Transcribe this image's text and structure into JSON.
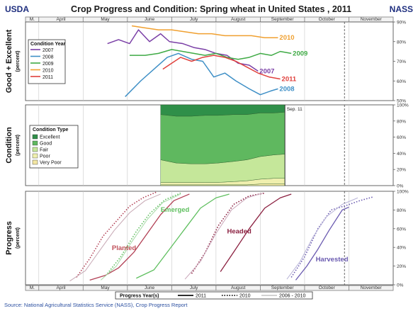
{
  "header": {
    "left": "USDA",
    "title": "Crop Progress and Condition: Spring wheat in United States , 2011",
    "right": "NASS"
  },
  "months_top": [
    "M.",
    "April",
    "May",
    "June",
    "July",
    "August",
    "September",
    "October",
    "November"
  ],
  "months_bottom": [
    "M.",
    "April",
    "May",
    "June",
    "July",
    "August",
    "September",
    "October",
    "November"
  ],
  "source": "Source: National Agricultural Statistics Service (NASS), Crop Progress Report",
  "colors": {
    "title": "#1f2f7f",
    "y2007": "#7a3fa6",
    "y2008": "#3e8fc6",
    "y2009": "#3faa45",
    "y2010": "#f0a030",
    "y2011": "#e0403c"
  },
  "chart_data": [
    {
      "type": "line",
      "name": "good-excellent",
      "ylabel": "Good + Excellent",
      "ylabel_sub": "(percent)",
      "xlim": [
        0,
        8.3
      ],
      "ylim": [
        50,
        90
      ],
      "yticks": [
        "90%",
        "80%",
        "70%",
        "60%",
        "50%"
      ],
      "ytick_values": [
        90,
        80,
        70,
        60,
        50
      ],
      "legend": {
        "title": "Condition Year",
        "position": "left",
        "items": [
          "2007",
          "2008",
          "2009",
          "2010",
          "2011"
        ]
      },
      "series": [
        {
          "name": "2007",
          "color": "#7a3fa6",
          "label": "2007",
          "points": [
            [
              1.85,
              79
            ],
            [
              2.1,
              81
            ],
            [
              2.35,
              79
            ],
            [
              2.55,
              86
            ],
            [
              2.8,
              80
            ],
            [
              3.05,
              84
            ],
            [
              3.25,
              80
            ],
            [
              3.55,
              79
            ],
            [
              3.8,
              77
            ],
            [
              4.05,
              76
            ],
            [
              4.3,
              74
            ],
            [
              4.55,
              73
            ],
            [
              4.8,
              69
            ],
            [
              5.05,
              68
            ],
            [
              5.25,
              65
            ]
          ]
        },
        {
          "name": "2008",
          "color": "#3e8fc6",
          "label": "2008",
          "points": [
            [
              2.25,
              52
            ],
            [
              2.6,
              60
            ],
            [
              2.95,
              67
            ],
            [
              3.2,
              72
            ],
            [
              3.45,
              74
            ],
            [
              3.75,
              71
            ],
            [
              4.0,
              70
            ],
            [
              4.25,
              62
            ],
            [
              4.5,
              64
            ],
            [
              4.75,
              60
            ],
            [
              5.05,
              56
            ],
            [
              5.3,
              53
            ],
            [
              5.55,
              55
            ],
            [
              5.7,
              56
            ]
          ]
        },
        {
          "name": "2009",
          "color": "#3faa45",
          "label": "2009",
          "points": [
            [
              2.35,
              73
            ],
            [
              2.7,
              73
            ],
            [
              3.0,
              74
            ],
            [
              3.3,
              76
            ],
            [
              3.55,
              75
            ],
            [
              3.8,
              74
            ],
            [
              4.05,
              73
            ],
            [
              4.3,
              74
            ],
            [
              4.55,
              72
            ],
            [
              4.8,
              71
            ],
            [
              5.05,
              72
            ],
            [
              5.3,
              74
            ],
            [
              5.55,
              73
            ],
            [
              5.75,
              75
            ],
            [
              6.0,
              74
            ]
          ]
        },
        {
          "name": "2010",
          "color": "#f0a030",
          "label": "2010",
          "points": [
            [
              2.4,
              88
            ],
            [
              2.7,
              87
            ],
            [
              3.0,
              86
            ],
            [
              3.3,
              86
            ],
            [
              3.6,
              85
            ],
            [
              3.9,
              84
            ],
            [
              4.2,
              84
            ],
            [
              4.5,
              83
            ],
            [
              4.8,
              83
            ],
            [
              5.1,
              83
            ],
            [
              5.4,
              82
            ],
            [
              5.7,
              82
            ]
          ]
        },
        {
          "name": "2011",
          "color": "#e0403c",
          "label": "2011",
          "points": [
            [
              3.1,
              66
            ],
            [
              3.3,
              69
            ],
            [
              3.5,
              72
            ],
            [
              3.75,
              70
            ],
            [
              4.0,
              72
            ],
            [
              4.25,
              73
            ],
            [
              4.5,
              72
            ],
            [
              4.75,
              70
            ],
            [
              5.0,
              67
            ],
            [
              5.25,
              64
            ],
            [
              5.5,
              62
            ],
            [
              5.75,
              61
            ]
          ]
        }
      ]
    },
    {
      "type": "area",
      "name": "condition",
      "ylabel": "Condition",
      "ylabel_sub": "(percent)",
      "xlim": [
        0,
        8.3
      ],
      "ylim": [
        0,
        100
      ],
      "yticks": [
        "100%",
        "80%",
        "60%",
        "40%",
        "20%",
        "0%"
      ],
      "ytick_values": [
        100,
        80,
        60,
        40,
        20,
        0
      ],
      "annotation": "Sep. 11",
      "legend": {
        "title": "Condition Type",
        "position": "left",
        "items": [
          "Excellent",
          "Good",
          "Fair",
          "Poor",
          "Very Poor"
        ]
      },
      "x": [
        3.05,
        3.4,
        3.75,
        4.05,
        4.35,
        4.7,
        5.0,
        5.3,
        5.6,
        5.85
      ],
      "layers": [
        {
          "name": "Very Poor",
          "color": "#f3e6a2",
          "values": [
            1,
            1,
            1,
            1,
            1,
            1,
            1,
            2,
            2,
            2
          ]
        },
        {
          "name": "Poor",
          "color": "#efefae",
          "values": [
            3,
            3,
            3,
            3,
            3,
            4,
            5,
            6,
            7,
            7
          ]
        },
        {
          "name": "Fair",
          "color": "#c5e79a",
          "values": [
            28,
            24,
            23,
            23,
            24,
            25,
            26,
            28,
            29,
            30
          ]
        },
        {
          "name": "Good",
          "color": "#5fb85f",
          "values": [
            56,
            58,
            59,
            60,
            59,
            58,
            56,
            54,
            52,
            52
          ]
        },
        {
          "name": "Excellent",
          "color": "#2f8f49",
          "values": [
            12,
            14,
            14,
            13,
            13,
            12,
            12,
            10,
            10,
            9
          ]
        }
      ]
    },
    {
      "type": "line",
      "name": "progress",
      "ylabel": "Progress",
      "ylabel_sub": "(percent)",
      "xlim": [
        0,
        8.3
      ],
      "ylim": [
        0,
        100
      ],
      "yticks": [
        "100%",
        "80%",
        "60%",
        "40%",
        "20%",
        "0%"
      ],
      "ytick_values": [
        100,
        80,
        60,
        40,
        20,
        0
      ],
      "legend": {
        "title": "Progress Year(s)",
        "position": "bottom",
        "items": [
          "2011",
          "2010",
          "2006 - 2010"
        ]
      },
      "stage_labels": [
        {
          "text": "Planted",
          "color": "#c0505a",
          "x": 1.95,
          "y": 37
        },
        {
          "text": "Emerged",
          "color": "#5fbf5f",
          "x": 3.05,
          "y": 78
        },
        {
          "text": "Headed",
          "color": "#8b2040",
          "x": 4.55,
          "y": 55
        },
        {
          "text": "Harvested",
          "color": "#6a5ab0",
          "x": 6.55,
          "y": 25
        }
      ],
      "series": [
        {
          "name": "Planted 2011",
          "color": "#b24055",
          "style": "solid",
          "points": [
            [
              1.45,
              5
            ],
            [
              1.8,
              10
            ],
            [
              2.1,
              18
            ],
            [
              2.45,
              35
            ],
            [
              2.75,
              55
            ],
            [
              3.05,
              75
            ],
            [
              3.35,
              90
            ],
            [
              3.7,
              97
            ]
          ]
        },
        {
          "name": "Planted 2010",
          "color": "#b24055",
          "style": "dotted",
          "points": [
            [
              1.15,
              8
            ],
            [
              1.45,
              28
            ],
            [
              1.75,
              52
            ],
            [
              2.05,
              68
            ],
            [
              2.35,
              84
            ],
            [
              2.65,
              93
            ],
            [
              2.95,
              99
            ]
          ]
        },
        {
          "name": "Planted 2006-2010",
          "color": "#c7a8b4",
          "style": "dashed",
          "points": [
            [
              1.0,
              4
            ],
            [
              1.35,
              15
            ],
            [
              1.65,
              35
            ],
            [
              2.0,
              58
            ],
            [
              2.35,
              77
            ],
            [
              2.7,
              90
            ],
            [
              3.05,
              97
            ]
          ]
        },
        {
          "name": "Emerged 2011",
          "color": "#5fbf5f",
          "style": "solid",
          "points": [
            [
              2.5,
              7
            ],
            [
              2.9,
              16
            ],
            [
              3.25,
              38
            ],
            [
              3.6,
              60
            ],
            [
              3.95,
              82
            ],
            [
              4.3,
              93
            ],
            [
              4.6,
              97
            ]
          ]
        },
        {
          "name": "Emerged 2010",
          "color": "#5fbf5f",
          "style": "dotted",
          "points": [
            [
              1.85,
              12
            ],
            [
              2.15,
              30
            ],
            [
              2.5,
              57
            ],
            [
              2.8,
              76
            ],
            [
              3.15,
              91
            ],
            [
              3.5,
              98
            ]
          ]
        },
        {
          "name": "Emerged 2006-2010",
          "color": "#a7d9a7",
          "style": "dashed",
          "points": [
            [
              1.7,
              5
            ],
            [
              2.05,
              20
            ],
            [
              2.4,
              46
            ],
            [
              2.75,
              70
            ],
            [
              3.1,
              88
            ],
            [
              3.5,
              97
            ]
          ]
        },
        {
          "name": "Headed 2011",
          "color": "#8b2040",
          "style": "solid",
          "points": [
            [
              4.4,
              14
            ],
            [
              4.7,
              35
            ],
            [
              5.05,
              60
            ],
            [
              5.4,
              82
            ],
            [
              5.75,
              93
            ],
            [
              6.0,
              97
            ]
          ]
        },
        {
          "name": "Headed 2010",
          "color": "#8b2040",
          "style": "dotted",
          "points": [
            [
              3.75,
              12
            ],
            [
              4.05,
              34
            ],
            [
              4.35,
              63
            ],
            [
              4.7,
              86
            ],
            [
              5.05,
              95
            ],
            [
              5.4,
              98
            ]
          ]
        },
        {
          "name": "Headed 2006-2010",
          "color": "#c9a5b8",
          "style": "dashed",
          "points": [
            [
              3.6,
              6
            ],
            [
              3.95,
              25
            ],
            [
              4.3,
              55
            ],
            [
              4.65,
              80
            ],
            [
              5.0,
              93
            ],
            [
              5.35,
              98
            ]
          ]
        },
        {
          "name": "Harvested 2011",
          "color": "#6a5ab0",
          "style": "solid",
          "points": [
            [
              6.1,
              5
            ],
            [
              6.35,
              20
            ],
            [
              6.6,
              38
            ],
            [
              6.85,
              58
            ],
            [
              7.15,
              80
            ],
            [
              7.3,
              83
            ]
          ]
        },
        {
          "name": "Harvested 2010",
          "color": "#6a5ab0",
          "style": "dotted",
          "points": [
            [
              6.0,
              8
            ],
            [
              6.3,
              30
            ],
            [
              6.6,
              60
            ],
            [
              6.9,
              80
            ],
            [
              7.25,
              85
            ],
            [
              7.55,
              90
            ],
            [
              7.85,
              94
            ]
          ]
        },
        {
          "name": "Harvested 2006-2010",
          "color": "#b8b4d8",
          "style": "dashed",
          "points": [
            [
              5.9,
              6
            ],
            [
              6.2,
              25
            ],
            [
              6.5,
              52
            ],
            [
              6.8,
              73
            ],
            [
              7.15,
              86
            ],
            [
              7.5,
              93
            ]
          ]
        }
      ]
    }
  ],
  "vline": {
    "x": 7.2,
    "label": ""
  }
}
